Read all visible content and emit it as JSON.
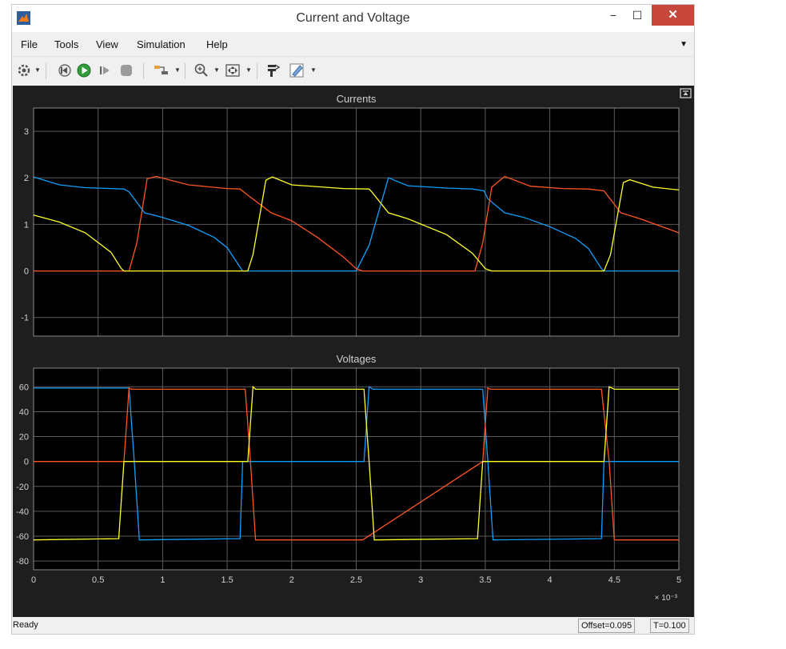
{
  "window": {
    "title": "Current and Voltage",
    "controls": {
      "minimize": "−",
      "maximize": "☐",
      "close": "✕"
    }
  },
  "menu": {
    "items": [
      "File",
      "Tools",
      "View",
      "Simulation",
      "Help"
    ],
    "overflow_icon": "chevron-down-icon"
  },
  "toolbar": {
    "icons": [
      "settings-gear-icon",
      "step-back-icon",
      "run-icon",
      "step-forward-icon",
      "stop-icon",
      "signal-selector-icon",
      "zoom-in-icon",
      "fit-to-view-icon",
      "style-icon",
      "highlight-icon"
    ]
  },
  "colors": {
    "background": "#1e1e1e",
    "axes_bg": "#000000",
    "grid": "#5a5a5a",
    "tick_text": "#d0d0d0",
    "series_blue": "#0f9ffa",
    "series_orange": "#ff5520",
    "series_yellow": "#ffff2a"
  },
  "chart_data": [
    {
      "type": "line",
      "title": "Currents",
      "xlim": [
        0,
        0.005
      ],
      "ylim": [
        -1.4,
        3.5
      ],
      "yticks": [
        -1,
        0,
        1,
        2,
        3
      ],
      "grid": true,
      "series": [
        {
          "color": "#0f9ffa",
          "x": [
            0,
            0.0002,
            0.0004,
            0.0006,
            0.0007,
            0.00074,
            0.00086,
            0.001,
            0.0012,
            0.0014,
            0.0015,
            0.0016,
            0.00162,
            0.0025,
            0.0026,
            0.00275,
            0.0029,
            0.0032,
            0.0034,
            0.00349,
            0.00352,
            0.00365,
            0.0038,
            0.004,
            0.0042,
            0.0043,
            0.0044,
            0.00442,
            0.005
          ],
          "y": [
            2.02,
            1.85,
            1.79,
            1.77,
            1.76,
            1.7,
            1.25,
            1.15,
            0.98,
            0.72,
            0.5,
            0.08,
            0.0,
            0.0,
            0.55,
            2.0,
            1.83,
            1.78,
            1.76,
            1.72,
            1.55,
            1.25,
            1.15,
            0.95,
            0.7,
            0.48,
            0.05,
            0.0,
            0.0
          ]
        },
        {
          "color": "#ff5520",
          "x": [
            0,
            0.00074,
            0.0008,
            0.00088,
            0.00095,
            0.0012,
            0.0015,
            0.0016,
            0.00165,
            0.00184,
            0.002,
            0.0022,
            0.0024,
            0.0025,
            0.00255,
            0.00342,
            0.00348,
            0.00355,
            0.00365,
            0.00385,
            0.0041,
            0.0043,
            0.00442,
            0.00455,
            0.0047,
            0.005
          ],
          "y": [
            0.0,
            0.0,
            0.6,
            1.98,
            2.03,
            1.85,
            1.77,
            1.76,
            1.65,
            1.25,
            1.08,
            0.72,
            0.3,
            0.05,
            0.0,
            0.0,
            0.6,
            1.8,
            2.03,
            1.82,
            1.77,
            1.76,
            1.72,
            1.25,
            1.12,
            0.82
          ]
        },
        {
          "color": "#ffff2a",
          "x": [
            0,
            0.0002,
            0.0004,
            0.0006,
            0.00068,
            0.0007,
            0.00166,
            0.0017,
            0.0018,
            0.00185,
            0.002,
            0.0024,
            0.0026,
            0.00262,
            0.00275,
            0.0029,
            0.0032,
            0.0034,
            0.0035,
            0.00355,
            0.00442,
            0.00447,
            0.00457,
            0.00462,
            0.0048,
            0.005
          ],
          "y": [
            1.2,
            1.05,
            0.82,
            0.4,
            0.05,
            0.0,
            0.0,
            0.35,
            1.95,
            2.02,
            1.85,
            1.77,
            1.76,
            1.7,
            1.25,
            1.12,
            0.78,
            0.38,
            0.05,
            0.0,
            0.0,
            0.35,
            1.9,
            1.96,
            1.8,
            1.74
          ]
        }
      ]
    },
    {
      "type": "line",
      "title": "Voltages",
      "xlim": [
        0,
        0.005
      ],
      "ylim": [
        -87,
        75
      ],
      "yticks": [
        -80,
        -60,
        -40,
        -20,
        0,
        20,
        40,
        60
      ],
      "xticks": [
        0,
        0.5,
        1,
        1.5,
        2,
        2.5,
        3,
        3.5,
        4,
        4.5,
        5
      ],
      "xtick_labels": [
        "0",
        "0.5",
        "1",
        "1.5",
        "2",
        "2.5",
        "3",
        "3.5",
        "4",
        "4.5",
        "5"
      ],
      "x_exponent": "× 10⁻³",
      "grid": true,
      "series": [
        {
          "color": "#0f9ffa",
          "x": [
            0,
            0.00074,
            0.00078,
            0.00082,
            0.0016,
            0.00162,
            0.00256,
            0.0026,
            0.00263,
            0.00348,
            0.00352,
            0.00356,
            0.0044,
            0.00442,
            0.005
          ],
          "y": [
            59,
            59,
            0,
            -63,
            -62,
            0,
            0,
            60,
            58,
            58,
            0,
            -63,
            -62,
            0,
            0
          ]
        },
        {
          "color": "#ff5520",
          "x": [
            0,
            0.00066,
            0.0007,
            0.00074,
            0.00076,
            0.00164,
            0.00168,
            0.00172,
            0.00255,
            0.00348,
            0.00352,
            0.00354,
            0.0044,
            0.00446,
            0.0045,
            0.005
          ],
          "y": [
            0,
            0,
            0,
            59,
            58,
            58,
            0,
            -63,
            -63,
            0,
            59,
            58,
            58,
            0,
            -63,
            -63
          ]
        },
        {
          "color": "#ffff2a",
          "x": [
            0,
            0.00066,
            0.0007,
            0.00166,
            0.0017,
            0.00172,
            0.00256,
            0.0026,
            0.00264,
            0.00344,
            0.00348,
            0.00442,
            0.00446,
            0.0045,
            0.005
          ],
          "y": [
            -63,
            -62,
            0,
            0,
            60,
            58,
            58,
            0,
            -63,
            -62,
            0,
            0,
            60,
            58,
            58
          ]
        }
      ]
    }
  ],
  "status": {
    "ready": "Ready",
    "offset": "Offset=0.095",
    "time": "T=0.100"
  }
}
